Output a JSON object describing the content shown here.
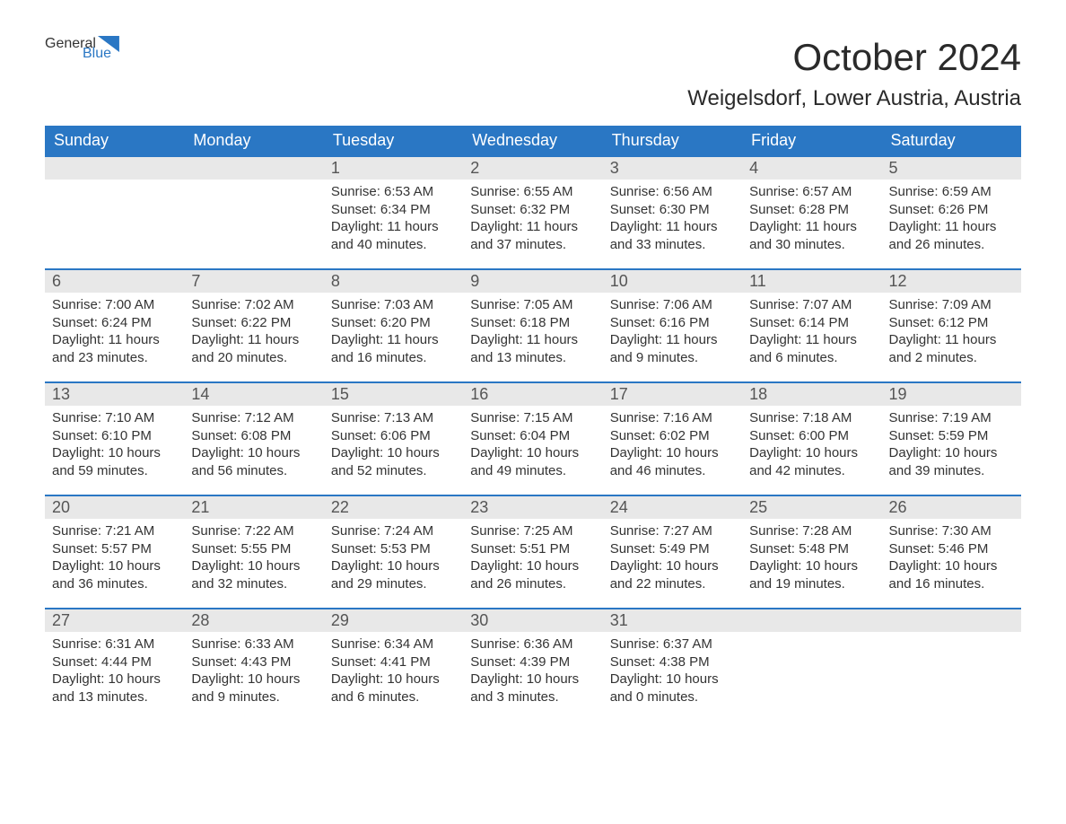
{
  "brand": {
    "word1": "General",
    "word2": "Blue"
  },
  "title": "October 2024",
  "location": "Weigelsdorf, Lower Austria, Austria",
  "colors": {
    "primary": "#2a77c4",
    "header_text": "#ffffff",
    "daynum_bg": "#e8e8e8",
    "text": "#333333",
    "background": "#ffffff"
  },
  "day_headers": [
    "Sunday",
    "Monday",
    "Tuesday",
    "Wednesday",
    "Thursday",
    "Friday",
    "Saturday"
  ],
  "weeks": [
    [
      {
        "n": "",
        "sr": "",
        "ss": "",
        "dl": ""
      },
      {
        "n": "",
        "sr": "",
        "ss": "",
        "dl": ""
      },
      {
        "n": "1",
        "sr": "Sunrise: 6:53 AM",
        "ss": "Sunset: 6:34 PM",
        "dl": "Daylight: 11 hours and 40 minutes."
      },
      {
        "n": "2",
        "sr": "Sunrise: 6:55 AM",
        "ss": "Sunset: 6:32 PM",
        "dl": "Daylight: 11 hours and 37 minutes."
      },
      {
        "n": "3",
        "sr": "Sunrise: 6:56 AM",
        "ss": "Sunset: 6:30 PM",
        "dl": "Daylight: 11 hours and 33 minutes."
      },
      {
        "n": "4",
        "sr": "Sunrise: 6:57 AM",
        "ss": "Sunset: 6:28 PM",
        "dl": "Daylight: 11 hours and 30 minutes."
      },
      {
        "n": "5",
        "sr": "Sunrise: 6:59 AM",
        "ss": "Sunset: 6:26 PM",
        "dl": "Daylight: 11 hours and 26 minutes."
      }
    ],
    [
      {
        "n": "6",
        "sr": "Sunrise: 7:00 AM",
        "ss": "Sunset: 6:24 PM",
        "dl": "Daylight: 11 hours and 23 minutes."
      },
      {
        "n": "7",
        "sr": "Sunrise: 7:02 AM",
        "ss": "Sunset: 6:22 PM",
        "dl": "Daylight: 11 hours and 20 minutes."
      },
      {
        "n": "8",
        "sr": "Sunrise: 7:03 AM",
        "ss": "Sunset: 6:20 PM",
        "dl": "Daylight: 11 hours and 16 minutes."
      },
      {
        "n": "9",
        "sr": "Sunrise: 7:05 AM",
        "ss": "Sunset: 6:18 PM",
        "dl": "Daylight: 11 hours and 13 minutes."
      },
      {
        "n": "10",
        "sr": "Sunrise: 7:06 AM",
        "ss": "Sunset: 6:16 PM",
        "dl": "Daylight: 11 hours and 9 minutes."
      },
      {
        "n": "11",
        "sr": "Sunrise: 7:07 AM",
        "ss": "Sunset: 6:14 PM",
        "dl": "Daylight: 11 hours and 6 minutes."
      },
      {
        "n": "12",
        "sr": "Sunrise: 7:09 AM",
        "ss": "Sunset: 6:12 PM",
        "dl": "Daylight: 11 hours and 2 minutes."
      }
    ],
    [
      {
        "n": "13",
        "sr": "Sunrise: 7:10 AM",
        "ss": "Sunset: 6:10 PM",
        "dl": "Daylight: 10 hours and 59 minutes."
      },
      {
        "n": "14",
        "sr": "Sunrise: 7:12 AM",
        "ss": "Sunset: 6:08 PM",
        "dl": "Daylight: 10 hours and 56 minutes."
      },
      {
        "n": "15",
        "sr": "Sunrise: 7:13 AM",
        "ss": "Sunset: 6:06 PM",
        "dl": "Daylight: 10 hours and 52 minutes."
      },
      {
        "n": "16",
        "sr": "Sunrise: 7:15 AM",
        "ss": "Sunset: 6:04 PM",
        "dl": "Daylight: 10 hours and 49 minutes."
      },
      {
        "n": "17",
        "sr": "Sunrise: 7:16 AM",
        "ss": "Sunset: 6:02 PM",
        "dl": "Daylight: 10 hours and 46 minutes."
      },
      {
        "n": "18",
        "sr": "Sunrise: 7:18 AM",
        "ss": "Sunset: 6:00 PM",
        "dl": "Daylight: 10 hours and 42 minutes."
      },
      {
        "n": "19",
        "sr": "Sunrise: 7:19 AM",
        "ss": "Sunset: 5:59 PM",
        "dl": "Daylight: 10 hours and 39 minutes."
      }
    ],
    [
      {
        "n": "20",
        "sr": "Sunrise: 7:21 AM",
        "ss": "Sunset: 5:57 PM",
        "dl": "Daylight: 10 hours and 36 minutes."
      },
      {
        "n": "21",
        "sr": "Sunrise: 7:22 AM",
        "ss": "Sunset: 5:55 PM",
        "dl": "Daylight: 10 hours and 32 minutes."
      },
      {
        "n": "22",
        "sr": "Sunrise: 7:24 AM",
        "ss": "Sunset: 5:53 PM",
        "dl": "Daylight: 10 hours and 29 minutes."
      },
      {
        "n": "23",
        "sr": "Sunrise: 7:25 AM",
        "ss": "Sunset: 5:51 PM",
        "dl": "Daylight: 10 hours and 26 minutes."
      },
      {
        "n": "24",
        "sr": "Sunrise: 7:27 AM",
        "ss": "Sunset: 5:49 PM",
        "dl": "Daylight: 10 hours and 22 minutes."
      },
      {
        "n": "25",
        "sr": "Sunrise: 7:28 AM",
        "ss": "Sunset: 5:48 PM",
        "dl": "Daylight: 10 hours and 19 minutes."
      },
      {
        "n": "26",
        "sr": "Sunrise: 7:30 AM",
        "ss": "Sunset: 5:46 PM",
        "dl": "Daylight: 10 hours and 16 minutes."
      }
    ],
    [
      {
        "n": "27",
        "sr": "Sunrise: 6:31 AM",
        "ss": "Sunset: 4:44 PM",
        "dl": "Daylight: 10 hours and 13 minutes."
      },
      {
        "n": "28",
        "sr": "Sunrise: 6:33 AM",
        "ss": "Sunset: 4:43 PM",
        "dl": "Daylight: 10 hours and 9 minutes."
      },
      {
        "n": "29",
        "sr": "Sunrise: 6:34 AM",
        "ss": "Sunset: 4:41 PM",
        "dl": "Daylight: 10 hours and 6 minutes."
      },
      {
        "n": "30",
        "sr": "Sunrise: 6:36 AM",
        "ss": "Sunset: 4:39 PM",
        "dl": "Daylight: 10 hours and 3 minutes."
      },
      {
        "n": "31",
        "sr": "Sunrise: 6:37 AM",
        "ss": "Sunset: 4:38 PM",
        "dl": "Daylight: 10 hours and 0 minutes."
      },
      {
        "n": "",
        "sr": "",
        "ss": "",
        "dl": ""
      },
      {
        "n": "",
        "sr": "",
        "ss": "",
        "dl": ""
      }
    ]
  ]
}
